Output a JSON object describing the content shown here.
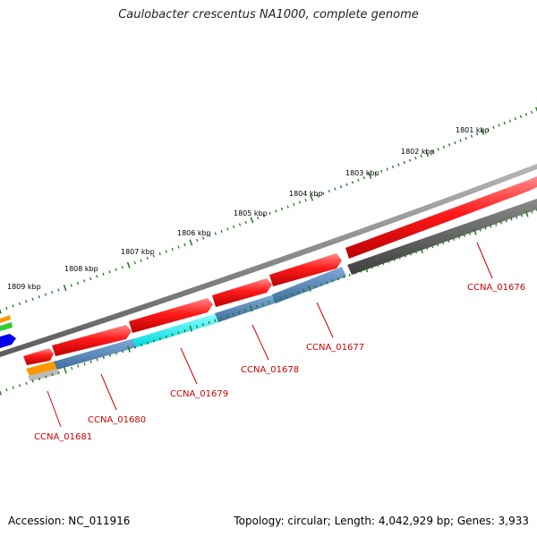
{
  "title": "Caulobacter crescentus NA1000, complete genome",
  "footer": {
    "accession": "Accession: NC_011916",
    "topology": "Topology: circular; Length: 4,042,929 bp; Genes: 3,933"
  },
  "scale_labels": [
    "1801 kbp",
    "1802 kbp",
    "1803 kbp",
    "1804 kbp",
    "1805 kbp",
    "1806 kbp",
    "1807 kbp",
    "1808 kbp",
    "1809 kbp"
  ],
  "gene_labels": [
    "CCNA_01676",
    "CCNA_01677",
    "CCNA_01678",
    "CCNA_01679",
    "CCNA_01680",
    "CCNA_01681"
  ],
  "colors": {
    "forward_cds": "#ff0000",
    "reverse_cds": "#4a7fb5",
    "reverse_highlight": "#00ffff",
    "reverse_dark": "#555555",
    "backbone": "#7a7a7a",
    "ticks": "#1a7a1a",
    "label": "#cc0000",
    "other_orange": "#ff9900",
    "other_green": "#33cc33",
    "other_blue": "#0000ee"
  }
}
